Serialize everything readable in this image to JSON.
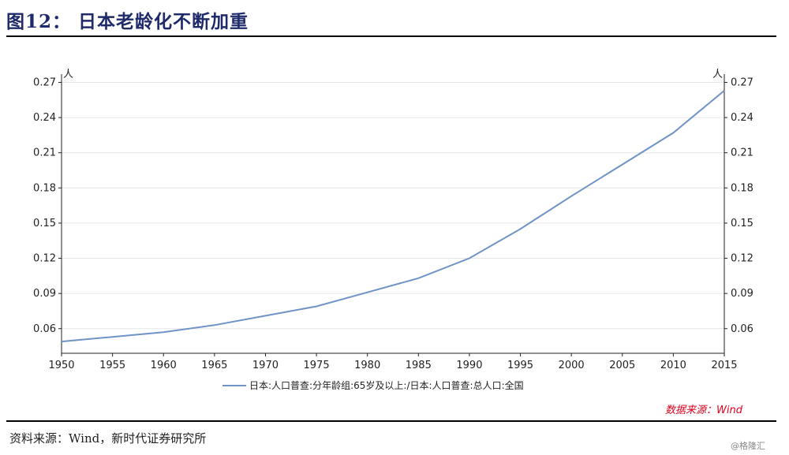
{
  "figure": {
    "title": "图12：  日本老龄化不断加重",
    "source_red": "数据来源：Wind",
    "source_note": "资料来源：Wind，新时代证券研究所",
    "watermark": "@格隆汇"
  },
  "chart_data": {
    "type": "line",
    "title": "",
    "xlabel": "",
    "ylabel": "",
    "y_unit_left": "人",
    "y_unit_right": "人",
    "x": [
      1950,
      1955,
      1960,
      1965,
      1970,
      1975,
      1980,
      1985,
      1990,
      1995,
      2000,
      2005,
      2010,
      2015
    ],
    "series": [
      {
        "name": "日本:人口普查:分年龄组:65岁及以上:/日本:人口普查:总人口:全国",
        "color": "#6f93c7",
        "values": [
          0.049,
          0.053,
          0.057,
          0.063,
          0.071,
          0.079,
          0.091,
          0.103,
          0.12,
          0.145,
          0.173,
          0.2,
          0.227,
          0.263
        ]
      }
    ],
    "xlim": [
      1950,
      2015
    ],
    "ylim": [
      0.039,
      0.273
    ],
    "y_ticks": [
      "0.06",
      "0.09",
      "0.12",
      "0.15",
      "0.18",
      "0.21",
      "0.24",
      "0.27"
    ],
    "x_ticks": [
      "1950",
      "1955",
      "1960",
      "1965",
      "1970",
      "1975",
      "1980",
      "1985",
      "1990",
      "1995",
      "2000",
      "2005",
      "2010",
      "2015"
    ],
    "grid": true,
    "legend_position": "bottom"
  }
}
